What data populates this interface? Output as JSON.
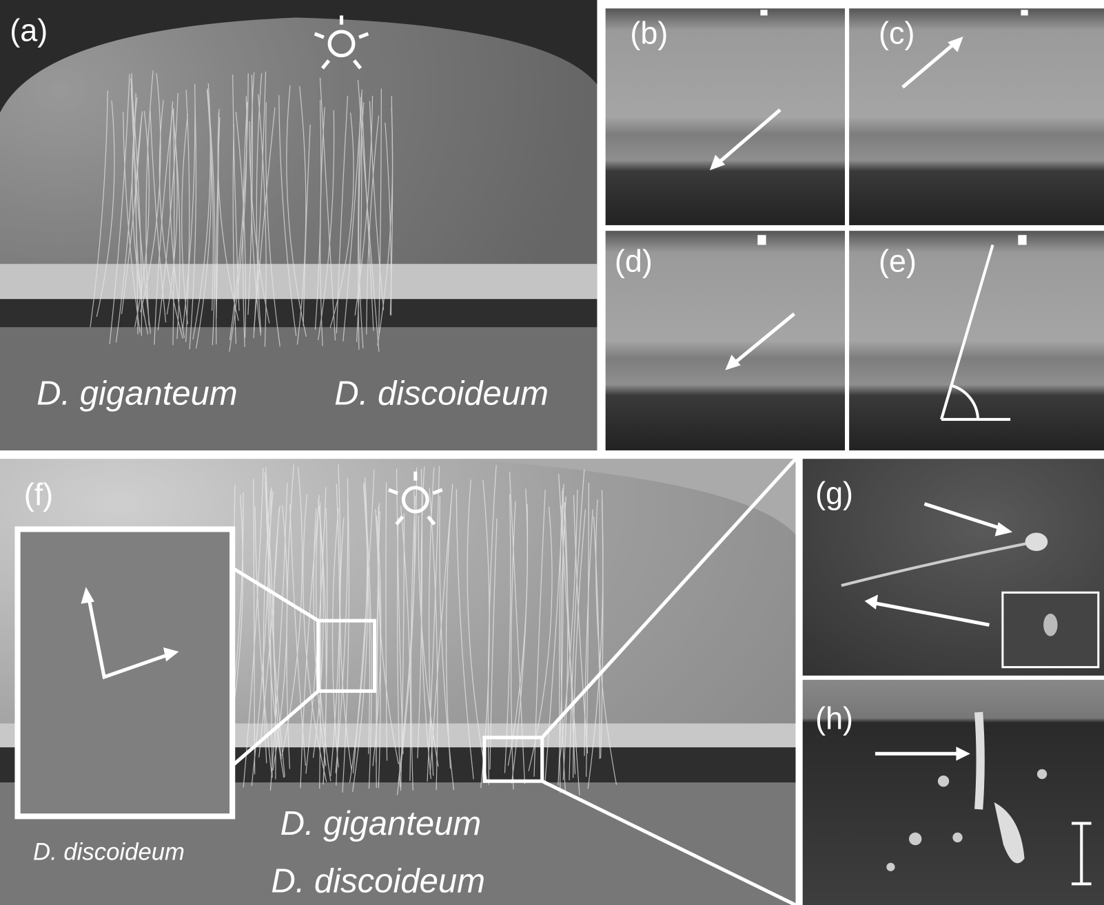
{
  "panels": [
    {
      "label": "(a)",
      "captions": [
        "D. giganteum",
        "D. discoideum"
      ]
    },
    {
      "label": "(b)"
    },
    {
      "label": "(c)"
    },
    {
      "label": "(d)"
    },
    {
      "label": "(e)"
    },
    {
      "label": "(f)",
      "captions": [
        "D. discoideum",
        "D. giganteum",
        "D. discoideum"
      ]
    },
    {
      "label": "(g)"
    },
    {
      "label": "(h)"
    }
  ]
}
